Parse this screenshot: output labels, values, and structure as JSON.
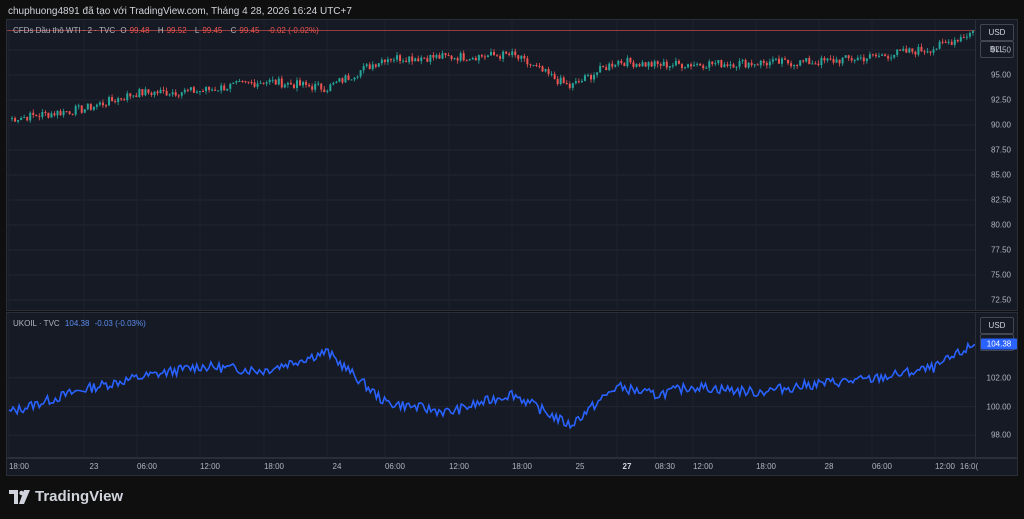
{
  "header": {
    "text": "chuphuong4891 đã tạo với TradingView.com, Tháng 4 28, 2026 16:24 UTC+7"
  },
  "top_panel": {
    "symbol": "CFDs Dầu thô WTI · 2 · TVC",
    "open_label": "O",
    "open": "99.48",
    "high_label": "H",
    "high": "99.52",
    "low_label": "L",
    "low": "99.45",
    "close_label": "C",
    "close": "99.45",
    "change": "-0.02 (-0.02%)",
    "unit_currency": "USD",
    "unit_measure": "BLL",
    "y_ticks": [
      "97.50",
      "95.00",
      "92.50",
      "90.00",
      "87.50",
      "85.00",
      "82.50",
      "80.00",
      "77.50",
      "75.00",
      "72.50"
    ]
  },
  "bottom_panel": {
    "symbol": "UKOIL · TVC",
    "last": "104.38",
    "change": "-0.03 (-0.03%)",
    "unit_currency": "USD",
    "unit_measure": "BLL",
    "y_ticks": [
      "102.00",
      "100.00",
      "98.00"
    ],
    "last_badge": "104.38"
  },
  "x_axis": {
    "ticks": [
      "18:00",
      "23",
      "06:00",
      "12:00",
      "18:00",
      "24",
      "06:00",
      "12:00",
      "18:00",
      "25",
      "27",
      "08:30",
      "12:00",
      "18:00",
      "28",
      "06:00",
      "12:00",
      "16:0("
    ]
  },
  "colors": {
    "up": "#ef5350",
    "down": "#26a69a",
    "line": "#2962ff",
    "background": "#161a25"
  },
  "logo": {
    "text": "TradingView"
  },
  "chart_data": [
    {
      "type": "candlestick",
      "title": "CFDs Dầu thô WTI · 2 · TVC",
      "x": [
        "18:00",
        "23",
        "06:00",
        "12:00",
        "18:00",
        "24",
        "06:00",
        "12:00",
        "18:00",
        "25",
        "27",
        "08:30",
        "12:00",
        "18:00",
        "28",
        "06:00",
        "12:00",
        "16:00"
      ],
      "values": [
        90.6,
        91.6,
        93.2,
        93.4,
        94.4,
        93.7,
        96.7,
        96.8,
        97.0,
        93.8,
        96.4,
        96.0,
        96.1,
        96.2,
        96.3,
        96.8,
        97.7,
        99.45
      ],
      "ylim": [
        71.5,
        100.5
      ],
      "y_ticks": [
        72.5,
        75,
        77.5,
        80,
        82.5,
        85,
        87.5,
        90,
        92.5,
        95,
        97.5
      ]
    },
    {
      "type": "line",
      "title": "UKOIL · TVC",
      "x": [
        "18:00",
        "23",
        "06:00",
        "12:00",
        "18:00",
        "24",
        "06:00",
        "12:00",
        "18:00",
        "25",
        "27",
        "08:30",
        "12:00",
        "18:00",
        "28",
        "06:00",
        "12:00",
        "16:00"
      ],
      "values": [
        99.6,
        101.2,
        102.0,
        102.8,
        102.5,
        103.8,
        100.3,
        99.6,
        100.9,
        98.7,
        101.4,
        100.8,
        101.4,
        101.0,
        101.6,
        101.9,
        102.7,
        104.38
      ],
      "ylim": [
        96.5,
        106.5
      ],
      "y_ticks": [
        98,
        100,
        102
      ]
    }
  ]
}
